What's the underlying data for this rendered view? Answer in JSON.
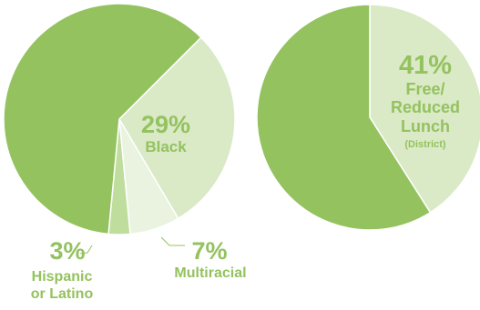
{
  "colors": {
    "main": "#94c25f",
    "light": "#dae9c6",
    "lighter": "#e9f3df",
    "mid": "#bfdd9d",
    "label_on_light": "#94c25f",
    "label_on_white": "#94c25f",
    "connector": "#94c25f"
  },
  "chart_data": [
    {
      "type": "pie",
      "slices": [
        {
          "label": "Black",
          "value": 29,
          "value_text": "29%",
          "color": "light"
        },
        {
          "label": "Multiracial",
          "value": 7,
          "value_text": "7%",
          "color": "lighter"
        },
        {
          "label": "Hispanic or Latino",
          "value": 3,
          "value_text": "3%",
          "label_lines": [
            "Hispanic",
            "or Latino"
          ],
          "color": "mid"
        },
        {
          "label": "",
          "value": 61,
          "value_text": "",
          "color": "main"
        }
      ]
    },
    {
      "type": "pie",
      "slices": [
        {
          "label": "Free/ Reduced Lunch (District)",
          "value": 41,
          "value_text": "41%",
          "label_lines": [
            "Free/",
            "Reduced",
            "Lunch"
          ],
          "note": "(District)",
          "color": "light"
        },
        {
          "label": "",
          "value": 59,
          "value_text": "",
          "color": "main"
        }
      ]
    }
  ]
}
